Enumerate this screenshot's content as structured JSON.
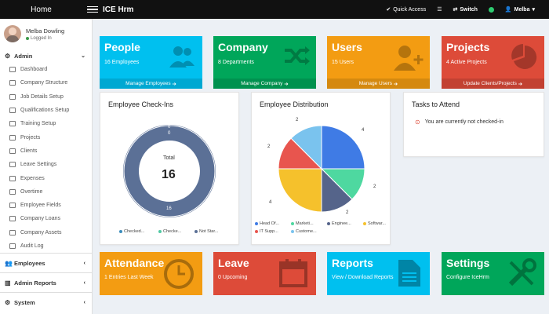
{
  "topbar": {
    "home": "Home",
    "brand": "ICE Hrm",
    "quick_access": "Quick Access",
    "switch": "Switch",
    "user": "Melba"
  },
  "user": {
    "name": "Melba Dowling",
    "status": "Logged In"
  },
  "sidebar": {
    "admin": "Admin",
    "items": [
      "Dashboard",
      "Company Structure",
      "Job Details Setup",
      "Qualifications Setup",
      "Training Setup",
      "Projects",
      "Clients",
      "Leave Settings",
      "Expenses",
      "Overtime",
      "Employee Fields",
      "Company Loans",
      "Company Assets",
      "Audit Log"
    ],
    "employees": "Employees",
    "admin_reports": "Admin Reports",
    "system": "System"
  },
  "tiles": [
    {
      "title": "People",
      "sub": "16 Employees",
      "foot": "Manage Employees",
      "color": "#00c0ef"
    },
    {
      "title": "Company",
      "sub": "8 Departments",
      "foot": "Manage Company",
      "color": "#00a65a"
    },
    {
      "title": "Users",
      "sub": "15 Users",
      "foot": "Manage Users",
      "color": "#f39c12"
    },
    {
      "title": "Projects",
      "sub": "4 Active Projects",
      "foot": "Update Clients/Projects",
      "color": "#dd4b39"
    }
  ],
  "tiles2": [
    {
      "title": "Attendance",
      "sub": "1 Entries Last Week",
      "color": "#f39c12"
    },
    {
      "title": "Leave",
      "sub": "0 Upcoming",
      "color": "#dd4b39"
    },
    {
      "title": "Reports",
      "sub": "View / Download Reports",
      "color": "#00c0ef"
    },
    {
      "title": "Settings",
      "sub": "Configure IceHrm",
      "color": "#00a65a"
    }
  ],
  "checkins": {
    "title": "Employee Check-Ins",
    "total_label": "Total",
    "total_value": "16",
    "seg_labels": [
      "0",
      "0",
      "16"
    ],
    "legend": [
      "Checked...",
      "Checke...",
      "Not Star..."
    ],
    "legend_colors": [
      "#3c8dbc",
      "#50c8a3",
      "#5b7096"
    ]
  },
  "distribution": {
    "title": "Employee Distribution",
    "legend": [
      "Head Of...",
      "Marketi...",
      "Enginee...",
      "Softwar...",
      "IT Supp...",
      "Custome..."
    ],
    "legend_colors": [
      "#3f7be5",
      "#4ed8a0",
      "#55648a",
      "#f5c12c",
      "#e8554e",
      "#7ac3ee"
    ],
    "counts": [
      "4",
      "2",
      "2",
      "4",
      "2",
      "2"
    ]
  },
  "tasks": {
    "title": "Tasks to Attend",
    "item": "You are currently not checked-in"
  }
}
